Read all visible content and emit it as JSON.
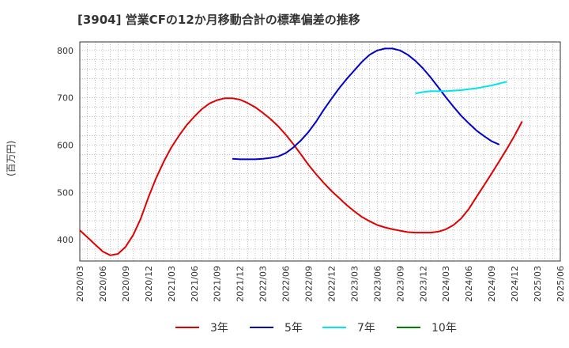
{
  "title": "[3904]  営業CFの12か月移動合計の標準偏差の推移",
  "y_unit": "(百万円)",
  "colors": {
    "s3": "#e00000",
    "s5": "#0000cc",
    "s7": "#00e5ee",
    "s10": "#008000",
    "grid": "#999999",
    "axis": "#333333"
  },
  "chart_data": {
    "type": "line",
    "title": "[3904]  営業CFの12か月移動合計の標準偏差の推移",
    "ylabel": "(百万円)",
    "ylim": [
      355,
      818
    ],
    "yticks": [
      400,
      500,
      600,
      700,
      800
    ],
    "grid": true,
    "legend_position": "bottom",
    "x_start": "2020/03",
    "x_end": "2025/06",
    "xticks": [
      "2020/03",
      "2020/06",
      "2020/09",
      "2020/12",
      "2021/03",
      "2021/06",
      "2021/09",
      "2021/12",
      "2022/03",
      "2022/06",
      "2022/09",
      "2022/12",
      "2023/03",
      "2023/06",
      "2023/09",
      "2023/12",
      "2024/03",
      "2024/06",
      "2024/09",
      "2024/12",
      "2025/03",
      "2025/06"
    ],
    "series": [
      {
        "name": "3年",
        "color": "#e00000",
        "start": "2020/03",
        "values": [
          420,
          405,
          390,
          375,
          367,
          370,
          385,
          410,
          445,
          490,
          530,
          565,
          595,
          620,
          642,
          660,
          676,
          688,
          695,
          699,
          699,
          696,
          689,
          680,
          668,
          655,
          640,
          622,
          602,
          580,
          558,
          538,
          520,
          503,
          488,
          473,
          460,
          448,
          439,
          431,
          426,
          422,
          419,
          416,
          415,
          415,
          415,
          417,
          422,
          431,
          445,
          465,
          490,
          515,
          540,
          566,
          592,
          620,
          650
        ]
      },
      {
        "name": "5年",
        "color": "#0000cc",
        "start": "2021/11",
        "values": [
          571,
          570,
          570,
          570,
          571,
          573,
          576,
          583,
          595,
          610,
          628,
          650,
          675,
          698,
          720,
          740,
          758,
          776,
          791,
          800,
          804,
          804,
          800,
          791,
          778,
          762,
          743,
          722,
          701,
          681,
          662,
          646,
          631,
          619,
          608,
          601
        ]
      },
      {
        "name": "7年",
        "color": "#00e5ee",
        "start": "2023/11",
        "values": [
          709,
          712,
          714,
          714,
          714,
          715,
          716,
          718,
          720,
          723,
          726,
          730,
          734
        ]
      },
      {
        "name": "10年",
        "color": "#008000",
        "start": "2024/12",
        "values": []
      }
    ]
  }
}
